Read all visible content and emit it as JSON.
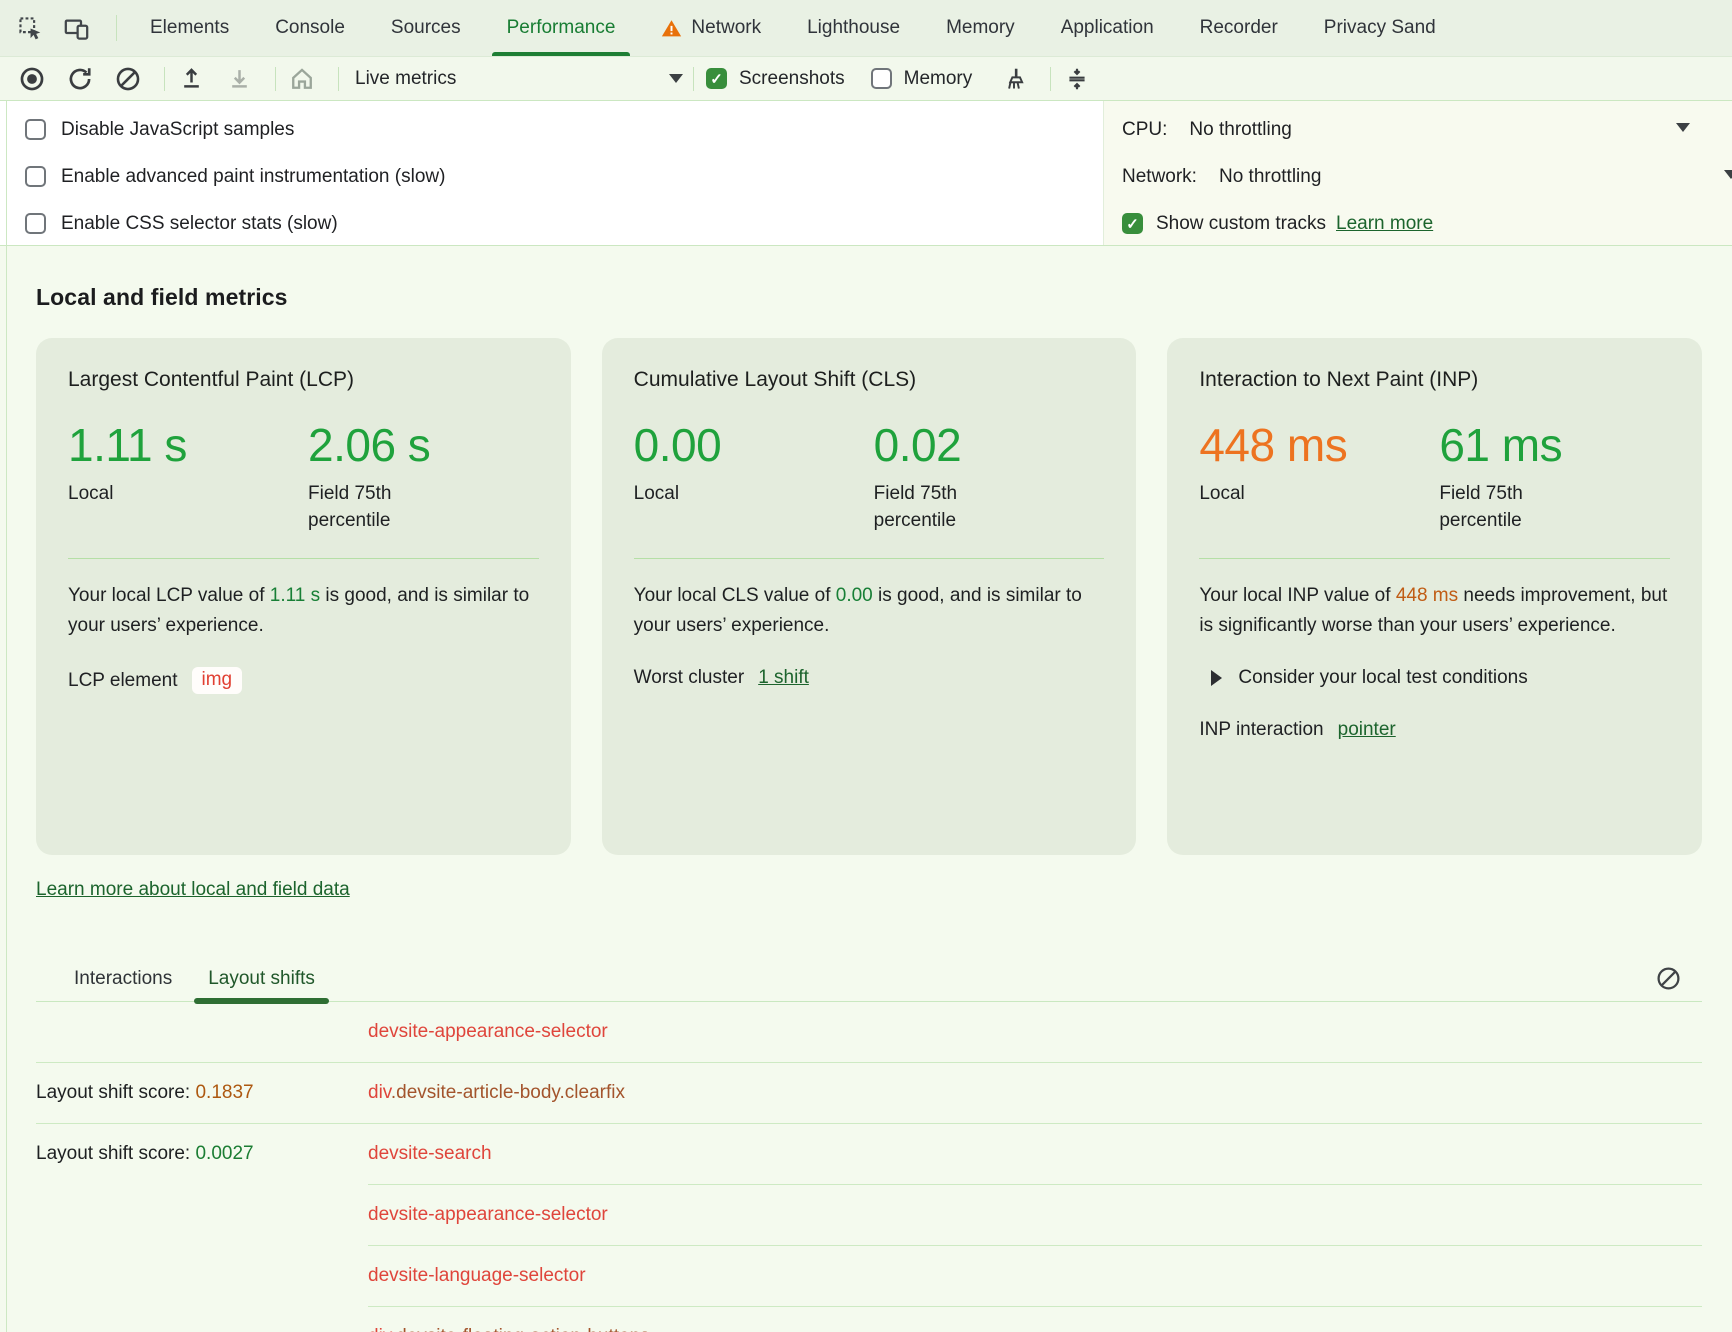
{
  "tab_bar": {
    "tabs": [
      {
        "label": "Elements",
        "active": false,
        "warning": false
      },
      {
        "label": "Console",
        "active": false,
        "warning": false
      },
      {
        "label": "Sources",
        "active": false,
        "warning": false
      },
      {
        "label": "Performance",
        "active": true,
        "warning": false
      },
      {
        "label": "Network",
        "active": false,
        "warning": true
      },
      {
        "label": "Lighthouse",
        "active": false,
        "warning": false
      },
      {
        "label": "Memory",
        "active": false,
        "warning": false
      },
      {
        "label": "Application",
        "active": false,
        "warning": false
      },
      {
        "label": "Recorder",
        "active": false,
        "warning": false
      },
      {
        "label": "Privacy Sand",
        "active": false,
        "warning": false
      }
    ]
  },
  "toolbar": {
    "mode_label": "Live metrics",
    "screenshots_label": "Screenshots",
    "screenshots_checked": true,
    "memory_label": "Memory",
    "memory_checked": false
  },
  "settings": {
    "checkboxes": [
      {
        "label": "Disable JavaScript samples",
        "checked": false
      },
      {
        "label": "Enable advanced paint instrumentation (slow)",
        "checked": false
      },
      {
        "label": "Enable CSS selector stats (slow)",
        "checked": false
      }
    ],
    "cpu_label": "CPU:",
    "cpu_value": "No throttling",
    "network_label": "Network:",
    "network_value": "No throttling",
    "custom_tracks_label": "Show custom tracks",
    "custom_tracks_checked": true,
    "custom_tracks_link": "Learn more"
  },
  "metrics": {
    "heading": "Local and field metrics",
    "local_label": "Local",
    "field_label": "Field 75th percentile",
    "cards": [
      {
        "title": "Largest Contentful Paint (LCP)",
        "local_value": "1.11 s",
        "local_status": "good",
        "field_value": "2.06 s",
        "field_status": "good",
        "desc_prefix": "Your local LCP value of ",
        "desc_value": "1.11 s",
        "desc_value_status": "good",
        "desc_suffix": " is good, and is similar to your users’ experience.",
        "footer_label": "LCP element",
        "footer_chip": "img"
      },
      {
        "title": "Cumulative Layout Shift (CLS)",
        "local_value": "0.00",
        "local_status": "good",
        "field_value": "0.02",
        "field_status": "good",
        "desc_prefix": "Your local CLS value of ",
        "desc_value": "0.00",
        "desc_value_status": "good",
        "desc_suffix": " is good, and is similar to your users’ experience.",
        "footer_label": "Worst cluster",
        "footer_link": "1 shift"
      },
      {
        "title": "Interaction to Next Paint (INP)",
        "local_value": "448 ms",
        "local_status": "needs-improvement",
        "field_value": "61 ms",
        "field_status": "good",
        "desc_prefix": "Your local INP value of ",
        "desc_value": "448 ms",
        "desc_value_status": "needs-improvement",
        "desc_suffix": " needs improvement, but is significantly worse than your users’ experience.",
        "expander_label": "Consider your local test conditions",
        "footer_label": "INP interaction",
        "footer_link": "pointer"
      }
    ],
    "learn_more_link": "Learn more about local and field data"
  },
  "shifts_panel": {
    "tabs": [
      {
        "label": "Interactions",
        "active": false
      },
      {
        "label": "Layout shifts",
        "active": true
      }
    ],
    "score_prefix": "Layout shift score: ",
    "rows": [
      {
        "score": null,
        "score_tone": null,
        "element": [
          {
            "text": "devsite-appearance-selector",
            "tone": "red"
          }
        ],
        "divider": "full"
      },
      {
        "score": "0.1837",
        "score_tone": "orange",
        "element": [
          {
            "text": "div",
            "tone": "red"
          },
          {
            "text": ".devsite-article-body.clearfix",
            "tone": "brown"
          }
        ],
        "divider": "full"
      },
      {
        "score": "0.0027",
        "score_tone": "green",
        "element": [
          {
            "text": "devsite-search",
            "tone": "red"
          }
        ],
        "divider": "indent"
      },
      {
        "score": null,
        "score_tone": null,
        "element": [
          {
            "text": "devsite-appearance-selector",
            "tone": "red"
          }
        ],
        "divider": "indent"
      },
      {
        "score": null,
        "score_tone": null,
        "element": [
          {
            "text": "devsite-language-selector",
            "tone": "red"
          }
        ],
        "divider": "indent"
      },
      {
        "score": null,
        "score_tone": null,
        "element": [
          {
            "text": "div",
            "tone": "red"
          },
          {
            "text": ".devsite-floating-action-buttons",
            "tone": "brown"
          }
        ],
        "divider": "none"
      }
    ]
  },
  "colors": {
    "accent_green": "#1e7e34",
    "value_green": "#1fa23c",
    "value_orange": "#ed7320",
    "link_green": "#1c642d",
    "node_red": "#df453b",
    "node_brown": "#a3542c",
    "warning_orange": "#e8710a"
  }
}
